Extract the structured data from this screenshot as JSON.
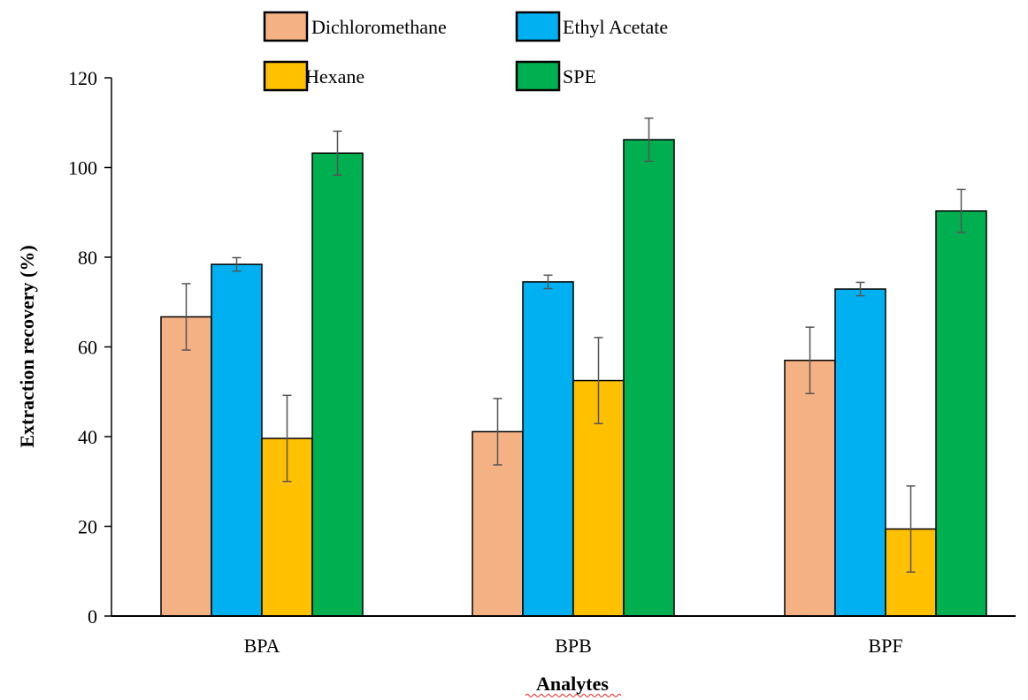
{
  "chart_data": {
    "type": "bar",
    "title": "",
    "xlabel": "Analytes",
    "ylabel": "Extraction recovery (%)",
    "ylim": [
      0,
      120
    ],
    "yticks": [
      0,
      20,
      40,
      60,
      80,
      100,
      120
    ],
    "grid": false,
    "legend_position": "top",
    "categories": [
      "BPA",
      "BPB",
      "BPF"
    ],
    "series": [
      {
        "name": "Dichloromethane",
        "color": "#F4B183",
        "values": [
          66.7,
          41.1,
          57.0
        ],
        "errors": [
          7.4,
          7.4,
          7.4
        ]
      },
      {
        "name": "Ethyl Acetate",
        "color": "#00B0F0",
        "values": [
          78.4,
          74.5,
          72.9
        ],
        "errors": [
          1.5,
          1.5,
          1.5
        ]
      },
      {
        "name": "Hexane",
        "color": "#FFC000",
        "values": [
          39.6,
          52.5,
          19.4
        ],
        "errors": [
          9.6,
          9.6,
          9.6
        ]
      },
      {
        "name": "SPE",
        "color": "#00B050",
        "values": [
          103.2,
          106.2,
          90.3
        ],
        "errors": [
          4.9,
          4.8,
          4.8
        ]
      }
    ]
  }
}
